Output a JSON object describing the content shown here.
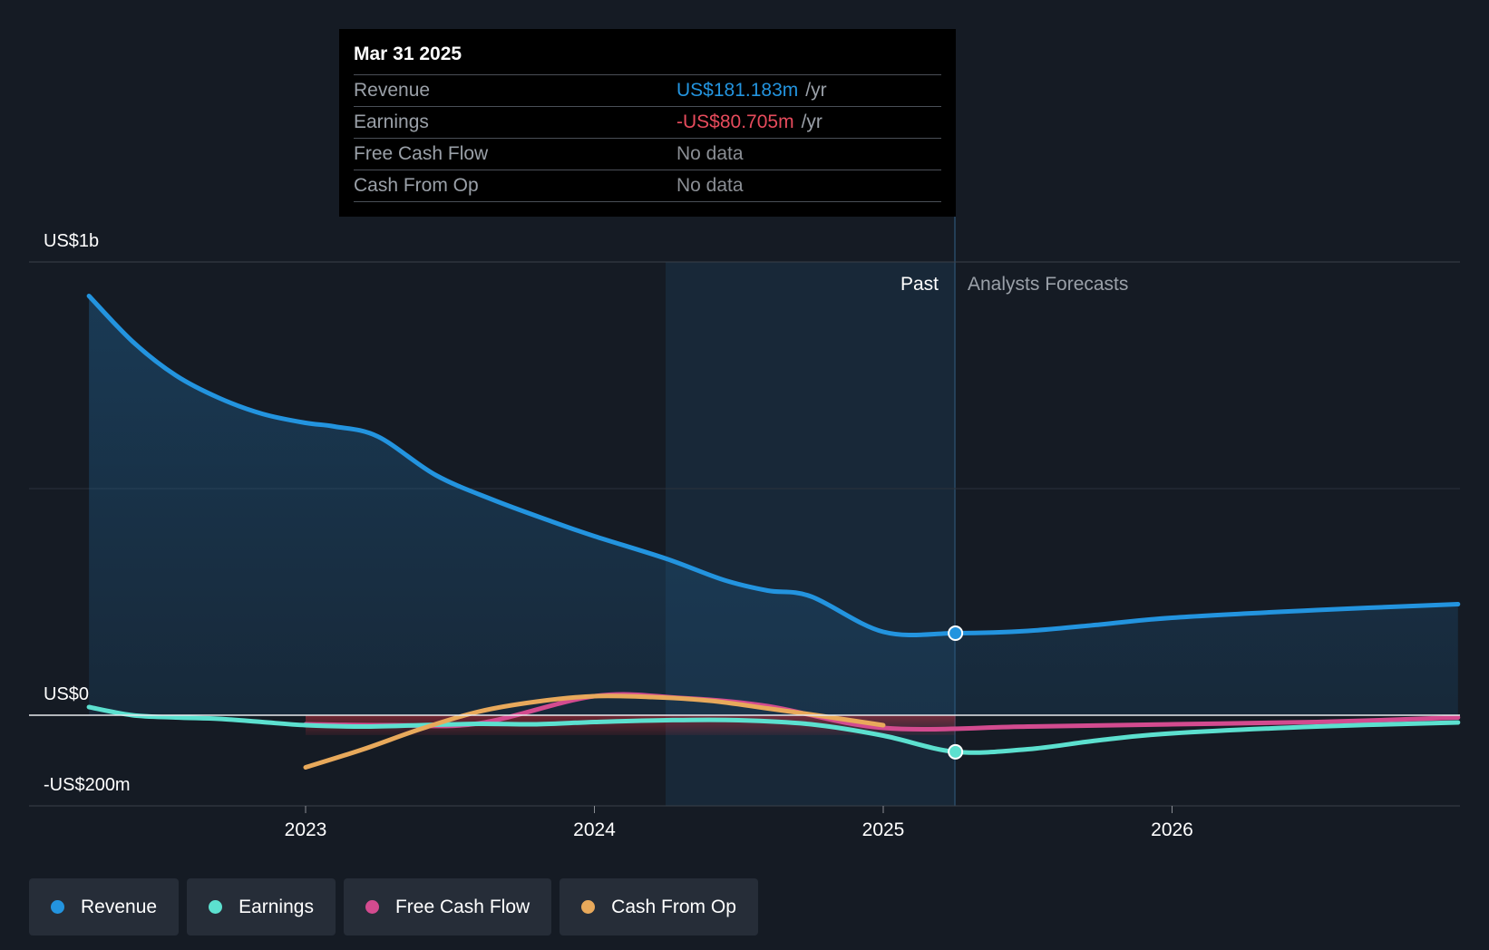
{
  "chart_data": {
    "type": "line",
    "title": "",
    "xlabel": "",
    "ylabel": "",
    "ylim": [
      -200,
      1000
    ],
    "y_tick_labels": [
      "US$1b",
      "US$0",
      "-US$200m"
    ],
    "x_tick_labels": [
      "2023",
      "2024",
      "2025",
      "2026"
    ],
    "past_label": "Past",
    "forecast_label": "Analysts Forecasts",
    "highlight_date": 2025.25,
    "series": [
      {
        "name": "Revenue",
        "color": "#2394df",
        "x": [
          2022.25,
          2022.4,
          2022.55,
          2022.7,
          2022.85,
          2023.0,
          2023.1,
          2023.25,
          2023.45,
          2023.65,
          2023.85,
          2024.0,
          2024.25,
          2024.45,
          2024.6,
          2024.75,
          2025.0,
          2025.25,
          2025.5,
          2025.75,
          2026.0,
          2026.5,
          2026.99
        ],
        "values": [
          925,
          825,
          750,
          700,
          665,
          645,
          637,
          615,
          530,
          475,
          428,
          395,
          345,
          298,
          275,
          262,
          184,
          181,
          186,
          200,
          215,
          232,
          245
        ]
      },
      {
        "name": "Earnings",
        "color": "#5ce0cf",
        "x": [
          2022.25,
          2022.4,
          2022.55,
          2022.7,
          2022.85,
          2023.0,
          2023.2,
          2023.4,
          2023.6,
          2023.8,
          2024.0,
          2024.25,
          2024.5,
          2024.75,
          2025.0,
          2025.25,
          2025.5,
          2025.75,
          2026.0,
          2026.5,
          2026.99
        ],
        "values": [
          18,
          0,
          -5,
          -8,
          -15,
          -22,
          -25,
          -22,
          -19,
          -20,
          -15,
          -11,
          -11,
          -20,
          -45,
          -80.705,
          -75,
          -55,
          -40,
          -25,
          -16
        ]
      },
      {
        "name": "Free Cash Flow",
        "color": "#d34b8f",
        "x": [
          2023.0,
          2023.3,
          2023.6,
          2024.0,
          2024.3,
          2024.6,
          2025.0,
          2025.5,
          2026.0,
          2026.5,
          2026.99
        ],
        "values": [
          -20,
          -22,
          -18,
          42,
          38,
          20,
          -28,
          -25,
          -20,
          -15,
          -5
        ]
      },
      {
        "name": "Cash From Op",
        "color": "#e8a95b",
        "x": [
          2023.0,
          2023.2,
          2023.4,
          2023.6,
          2023.8,
          2024.0,
          2024.2,
          2024.4,
          2024.6,
          2024.8,
          2025.0
        ],
        "values": [
          -115,
          -75,
          -30,
          8,
          30,
          42,
          40,
          32,
          15,
          -3,
          -22
        ]
      }
    ]
  },
  "tooltip": {
    "date": "Mar 31 2025",
    "rows": [
      {
        "label": "Revenue",
        "value": "US$181.183m",
        "unit": "/yr"
      },
      {
        "label": "Earnings",
        "value": "-US$80.705m",
        "unit": "/yr"
      },
      {
        "label": "Free Cash Flow",
        "value": "No data"
      },
      {
        "label": "Cash From Op",
        "value": "No data"
      }
    ]
  },
  "legend": [
    {
      "label": "Revenue",
      "color": "#2394df"
    },
    {
      "label": "Earnings",
      "color": "#5ce0cf"
    },
    {
      "label": "Free Cash Flow",
      "color": "#d34b8f"
    },
    {
      "label": "Cash From Op",
      "color": "#e8a95b"
    }
  ]
}
